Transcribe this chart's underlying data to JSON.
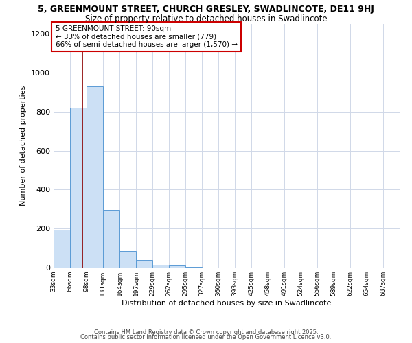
{
  "title1": "5, GREENMOUNT STREET, CHURCH GRESLEY, SWADLINCOTE, DE11 9HJ",
  "title2": "Size of property relative to detached houses in Swadlincote",
  "xlabel": "Distribution of detached houses by size in Swadlincote",
  "ylabel": "Number of detached properties",
  "bin_labels": [
    "33sqm",
    "66sqm",
    "98sqm",
    "131sqm",
    "164sqm",
    "197sqm",
    "229sqm",
    "262sqm",
    "295sqm",
    "327sqm",
    "360sqm",
    "393sqm",
    "425sqm",
    "458sqm",
    "491sqm",
    "524sqm",
    "556sqm",
    "589sqm",
    "622sqm",
    "654sqm",
    "687sqm"
  ],
  "bin_edges": [
    33,
    66,
    98,
    131,
    164,
    197,
    229,
    262,
    295,
    327,
    360,
    393,
    425,
    458,
    491,
    524,
    556,
    589,
    622,
    654,
    687,
    720
  ],
  "bar_heights": [
    195,
    820,
    930,
    295,
    85,
    38,
    15,
    12,
    4,
    0,
    0,
    0,
    0,
    0,
    0,
    0,
    0,
    0,
    0,
    0,
    0
  ],
  "bar_fill": "#cce0f5",
  "bar_edge": "#5b9bd5",
  "property_size": 90,
  "vline_color": "#8b0000",
  "annotation_line1": "5 GREENMOUNT STREET: 90sqm",
  "annotation_line2": "← 33% of detached houses are smaller (779)",
  "annotation_line3": "66% of semi-detached houses are larger (1,570) →",
  "annotation_box_edge": "#cc0000",
  "annotation_box_fill": "#ffffff",
  "ylim": [
    0,
    1250
  ],
  "yticks": [
    0,
    200,
    400,
    600,
    800,
    1000,
    1200
  ],
  "footer1": "Contains HM Land Registry data © Crown copyright and database right 2025.",
  "footer2": "Contains public sector information licensed under the Open Government Licence v3.0.",
  "background_color": "#ffffff",
  "grid_color": "#d0d8e8",
  "title1_fontsize": 9,
  "title2_fontsize": 8.5,
  "annotation_fontsize": 7.5,
  "footer_fontsize": 6
}
